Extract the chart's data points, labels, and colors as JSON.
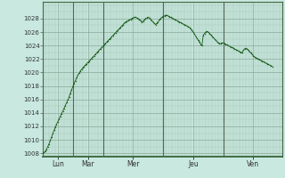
{
  "background_color": "#c8e8e0",
  "plot_bg_color": "#c8e8e0",
  "line_color": "#1a5c1a",
  "minor_grid_color": "#a8c8b8",
  "major_grid_color": "#88aa99",
  "tick_label_color": "#333333",
  "ylim": [
    1007.5,
    1030.5
  ],
  "yticks": [
    1008,
    1010,
    1012,
    1014,
    1016,
    1018,
    1020,
    1022,
    1024,
    1026,
    1028
  ],
  "day_labels": [
    "Lun",
    "Mar",
    "Mer",
    "Jeu",
    "Ven"
  ],
  "day_tick_positions": [
    12,
    36,
    72,
    120,
    168
  ],
  "day_vline_positions": [
    24,
    48,
    96,
    144
  ],
  "total_hours": 192,
  "pressure_data": [
    1008.0,
    1008.1,
    1008.3,
    1008.6,
    1009.0,
    1009.4,
    1009.9,
    1010.4,
    1010.9,
    1011.4,
    1011.9,
    1012.3,
    1012.7,
    1013.1,
    1013.5,
    1013.9,
    1014.3,
    1014.7,
    1015.1,
    1015.5,
    1015.9,
    1016.4,
    1016.9,
    1017.4,
    1017.9,
    1018.4,
    1018.8,
    1019.2,
    1019.6,
    1019.9,
    1020.2,
    1020.5,
    1020.7,
    1020.9,
    1021.1,
    1021.3,
    1021.5,
    1021.7,
    1021.9,
    1022.1,
    1022.3,
    1022.5,
    1022.7,
    1022.9,
    1023.1,
    1023.3,
    1023.5,
    1023.7,
    1023.9,
    1024.1,
    1024.3,
    1024.5,
    1024.7,
    1024.9,
    1025.1,
    1025.3,
    1025.5,
    1025.7,
    1025.9,
    1026.1,
    1026.3,
    1026.5,
    1026.7,
    1026.9,
    1027.1,
    1027.3,
    1027.5,
    1027.6,
    1027.7,
    1027.8,
    1027.9,
    1028.0,
    1028.1,
    1028.2,
    1028.2,
    1028.1,
    1028.0,
    1027.9,
    1027.7,
    1027.5,
    1027.6,
    1027.8,
    1028.0,
    1028.1,
    1028.2,
    1028.1,
    1027.9,
    1027.7,
    1027.5,
    1027.3,
    1027.1,
    1027.3,
    1027.5,
    1027.8,
    1028.0,
    1028.2,
    1028.3,
    1028.4,
    1028.5,
    1028.5,
    1028.4,
    1028.3,
    1028.2,
    1028.1,
    1028.0,
    1027.9,
    1027.8,
    1027.7,
    1027.6,
    1027.5,
    1027.4,
    1027.3,
    1027.2,
    1027.1,
    1027.0,
    1026.9,
    1026.8,
    1026.7,
    1026.5,
    1026.3,
    1026.0,
    1025.7,
    1025.4,
    1025.1,
    1024.8,
    1024.5,
    1024.2,
    1024.0,
    1025.5,
    1025.8,
    1026.0,
    1026.1,
    1026.0,
    1025.8,
    1025.6,
    1025.4,
    1025.2,
    1025.0,
    1024.8,
    1024.6,
    1024.4,
    1024.3,
    1024.3,
    1024.4,
    1024.4,
    1024.3,
    1024.2,
    1024.1,
    1024.0,
    1023.9,
    1023.8,
    1023.7,
    1023.6,
    1023.5,
    1023.4,
    1023.3,
    1023.2,
    1023.1,
    1023.0,
    1022.9,
    1023.3,
    1023.5,
    1023.6,
    1023.5,
    1023.3,
    1023.1,
    1022.9,
    1022.7,
    1022.5,
    1022.3,
    1022.2,
    1022.1,
    1022.0,
    1021.9,
    1021.8,
    1021.7,
    1021.6,
    1021.5,
    1021.4,
    1021.3,
    1021.2,
    1021.1,
    1021.0,
    1020.9
  ]
}
